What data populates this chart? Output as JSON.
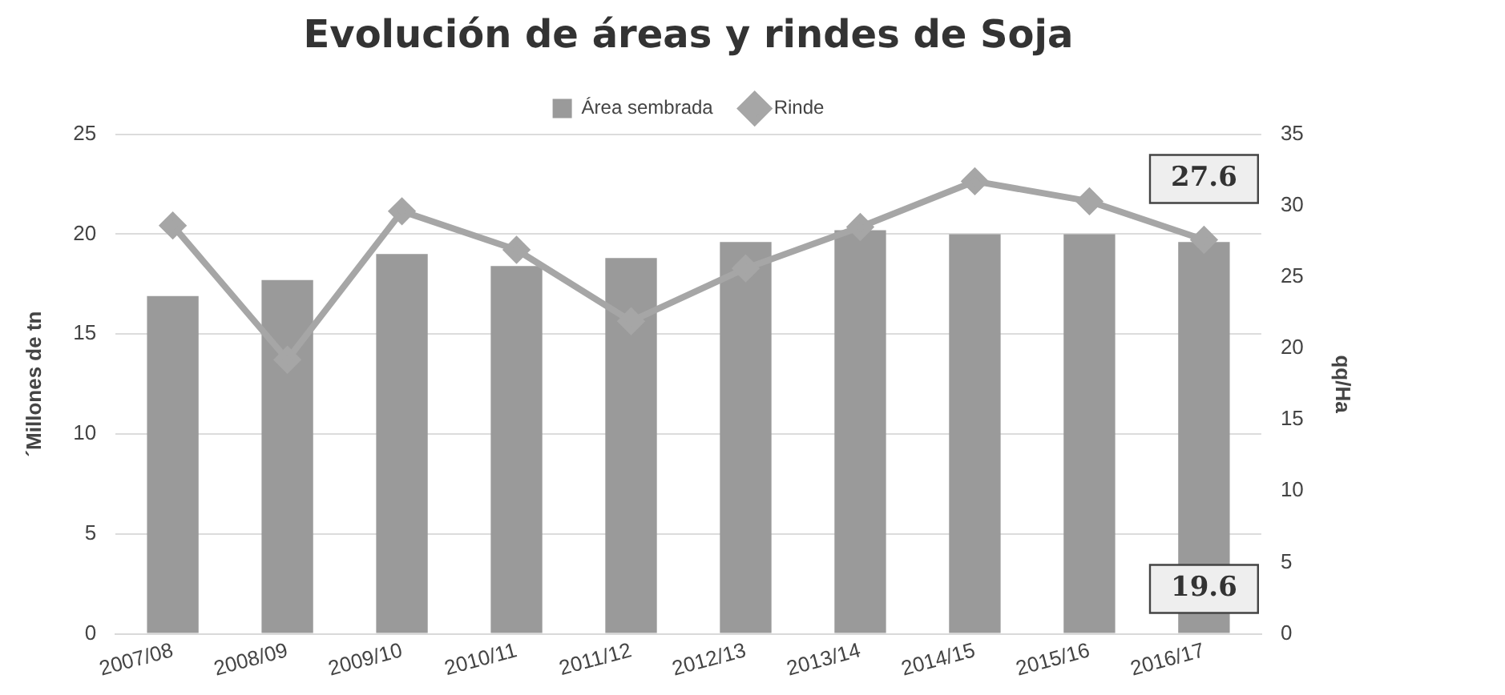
{
  "chart_data": {
    "type": "bar",
    "title": "Evolución de áreas y rindes de Soja",
    "ylabel": "´Millones de tn",
    "y2label": "qq/Ha",
    "categories": [
      "2007/08",
      "2008/09",
      "2009/10",
      "2010/11",
      "2011/12",
      "2012/13",
      "2013/14",
      "2014/15",
      "2015/16",
      "2016/17"
    ],
    "series": [
      {
        "name": "Área sembrada",
        "color": "#9a9a9a",
        "values": [
          16.9,
          17.7,
          19.0,
          18.4,
          18.8,
          19.6,
          20.2,
          20.0,
          20.0,
          19.6
        ],
        "value_labels": [
          null,
          null,
          null,
          null,
          null,
          null,
          null,
          null,
          null,
          "19.6"
        ]
      },
      {
        "name": "Rinde",
        "type": "line",
        "axis": "y2",
        "color": "#a6a6a6",
        "marker": "diamond",
        "values": [
          28.6,
          19.2,
          29.6,
          26.9,
          21.9,
          25.6,
          28.5,
          31.7,
          30.3,
          27.6
        ],
        "value_labels": [
          null,
          null,
          null,
          null,
          null,
          null,
          null,
          null,
          null,
          "27.6"
        ]
      }
    ],
    "ylim": [
      0,
      25
    ],
    "yticks": [
      0,
      5,
      10,
      15,
      20,
      25
    ],
    "y2lim": [
      0,
      35
    ],
    "y2ticks": [
      0,
      5,
      10,
      15,
      20,
      25,
      30,
      35
    ],
    "grid": "y",
    "legend": "top"
  }
}
